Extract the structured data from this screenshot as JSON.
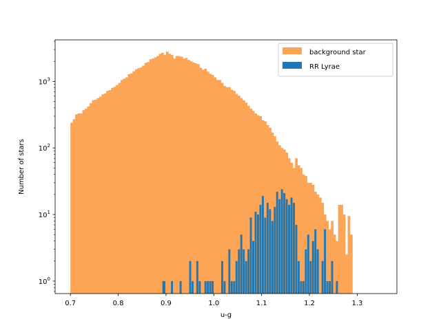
{
  "chart_data": {
    "type": "bar",
    "title": "",
    "xlabel": "u-g",
    "ylabel": "Number of stars",
    "yscale": "log",
    "xlim": [
      0.668,
      1.383
    ],
    "ylim": [
      0.65,
      4200
    ],
    "x_ticks": [
      "0.7",
      "0.8",
      "0.9",
      "1.0",
      "1.1",
      "1.2",
      "1.3"
    ],
    "y_ticks": [
      {
        "base": "10",
        "exp": "0"
      },
      {
        "base": "10",
        "exp": "1"
      },
      {
        "base": "10",
        "exp": "2"
      },
      {
        "base": "10",
        "exp": "3"
      }
    ],
    "grid": false,
    "legend": {
      "position": "top-right"
    },
    "series": [
      {
        "name": "background star",
        "color": "#fda557",
        "bin_start": 0.7,
        "bin_width": 0.005,
        "values": [
          240,
          270,
          320,
          330,
          330,
          370,
          390,
          420,
          470,
          520,
          530,
          560,
          590,
          640,
          660,
          720,
          740,
          800,
          830,
          880,
          950,
          1050,
          1100,
          1150,
          1280,
          1320,
          1420,
          1520,
          1580,
          1620,
          1720,
          1900,
          1950,
          2150,
          2200,
          2300,
          2400,
          2600,
          2700,
          2500,
          2800,
          2600,
          2500,
          2200,
          2400,
          2400,
          2350,
          2200,
          2250,
          2100,
          2000,
          1920,
          1870,
          1820,
          1600,
          1500,
          1550,
          1400,
          1300,
          1250,
          1150,
          1050,
          1050,
          950,
          850,
          820,
          820,
          750,
          720,
          650,
          610,
          560,
          520,
          480,
          430,
          390,
          360,
          330,
          310,
          300,
          260,
          250,
          220,
          200,
          170,
          150,
          125,
          110,
          100,
          95,
          85,
          70,
          60,
          50,
          70,
          55,
          50,
          40,
          38,
          30,
          30,
          28,
          22,
          20,
          18,
          15,
          10,
          8,
          6,
          8,
          5,
          4
        ],
        "extra_values": [
          14,
          14,
          10,
          2.5,
          9.5,
          5
        ]
      },
      {
        "name": "RR Lyrae",
        "color": "#1f77b4",
        "bin_start": 0.7,
        "bin_width": 0.005,
        "bins": [
          {
            "x": 0.8945,
            "v": 1
          },
          {
            "x": 0.8965,
            "v": 1
          },
          {
            "x": 0.9125,
            "v": 1
          },
          {
            "x": 0.9305,
            "v": 1
          },
          {
            "x": 0.9505,
            "v": 2
          },
          {
            "x": 0.9555,
            "v": 1
          },
          {
            "x": 0.9655,
            "v": 2
          },
          {
            "x": 0.9705,
            "v": 1
          },
          {
            "x": 0.9825,
            "v": 1
          },
          {
            "x": 0.9875,
            "v": 1
          },
          {
            "x": 0.9925,
            "v": 1
          },
          {
            "x": 0.9975,
            "v": 1
          },
          {
            "x": 1.0175,
            "v": 2
          },
          {
            "x": 1.0225,
            "v": 1
          },
          {
            "x": 1.0325,
            "v": 3
          },
          {
            "x": 1.0375,
            "v": 1
          },
          {
            "x": 1.0425,
            "v": 1
          },
          {
            "x": 1.0475,
            "v": 2
          },
          {
            "x": 1.0525,
            "v": 3
          },
          {
            "x": 1.0575,
            "v": 5
          },
          {
            "x": 1.0625,
            "v": 3
          },
          {
            "x": 1.0675,
            "v": 2
          },
          {
            "x": 1.0725,
            "v": 3
          },
          {
            "x": 1.0775,
            "v": 9
          },
          {
            "x": 1.0825,
            "v": 4
          },
          {
            "x": 1.0875,
            "v": 11
          },
          {
            "x": 1.0925,
            "v": 10
          },
          {
            "x": 1.0975,
            "v": 14
          },
          {
            "x": 1.1025,
            "v": 19
          },
          {
            "x": 1.1075,
            "v": 9
          },
          {
            "x": 1.1125,
            "v": 15
          },
          {
            "x": 1.1175,
            "v": 12
          },
          {
            "x": 1.1225,
            "v": 8
          },
          {
            "x": 1.1275,
            "v": 13
          },
          {
            "x": 1.1325,
            "v": 22
          },
          {
            "x": 1.1375,
            "v": 17
          },
          {
            "x": 1.1425,
            "v": 24
          },
          {
            "x": 1.1475,
            "v": 21
          },
          {
            "x": 1.1525,
            "v": 17
          },
          {
            "x": 1.1575,
            "v": 14
          },
          {
            "x": 1.1625,
            "v": 18
          },
          {
            "x": 1.1675,
            "v": 15
          },
          {
            "x": 1.1725,
            "v": 7
          },
          {
            "x": 1.1775,
            "v": 2
          },
          {
            "x": 1.1825,
            "v": 1
          },
          {
            "x": 1.1875,
            "v": 1
          },
          {
            "x": 1.1925,
            "v": 3
          },
          {
            "x": 1.1975,
            "v": 5
          },
          {
            "x": 1.2025,
            "v": 2
          },
          {
            "x": 1.2075,
            "v": 4
          },
          {
            "x": 1.2125,
            "v": 6
          },
          {
            "x": 1.2175,
            "v": 3
          },
          {
            "x": 1.2275,
            "v": 2
          },
          {
            "x": 1.2325,
            "v": 6
          },
          {
            "x": 1.2375,
            "v": 1
          },
          {
            "x": 1.2425,
            "v": 1
          },
          {
            "x": 1.2475,
            "v": 2
          },
          {
            "x": 1.2575,
            "v": 1
          }
        ]
      }
    ]
  }
}
